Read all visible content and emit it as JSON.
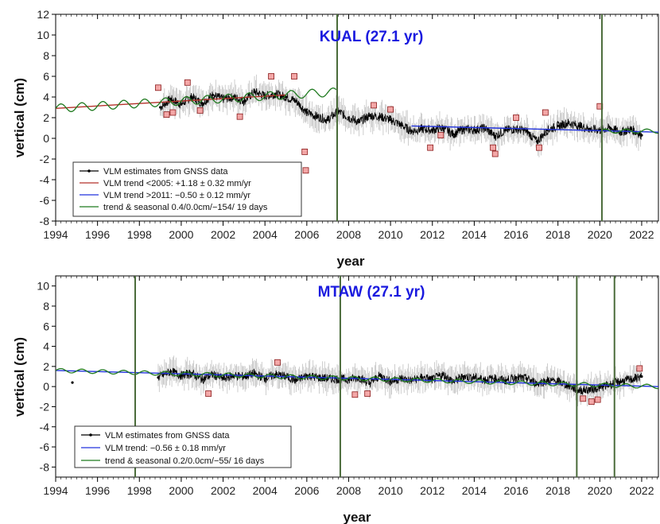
{
  "chart_data": [
    {
      "type": "line",
      "title": "KUAL (27.1 yr)",
      "xlabel": "year",
      "ylabel": "vertical (cm)",
      "xlim": [
        1994,
        2022.8
      ],
      "ylim": [
        -8,
        12
      ],
      "x_ticks": [
        "1994",
        "1996",
        "1998",
        "2000",
        "2002",
        "2004",
        "2006",
        "2008",
        "2010",
        "2012",
        "2014",
        "2016",
        "2018",
        "2020",
        "2022"
      ],
      "y_ticks": [
        "-8",
        "-6",
        "-4",
        "-2",
        "0",
        "2",
        "4",
        "6",
        "8",
        "10",
        "12"
      ],
      "legend": [
        {
          "label": "VLM estimates from GNSS data",
          "color": "#000000"
        },
        {
          "label": "VLM trend <2005: +1.18 ± 0.32 mm/yr",
          "color": "#b5322a"
        },
        {
          "label": "VLM trend >2011: −0.50 ± 0.12 mm/yr",
          "color": "#2233dd"
        },
        {
          "label": "trend & seasonal 0.4/0.0cm/−154/ 19 days",
          "color": "#1f7a1f"
        }
      ],
      "legend_position": "bottom-left",
      "breaks": [
        2007.45,
        2020.1
      ],
      "series": [
        {
          "name": "VLM estimates from GNSS data",
          "x": [
            1999.0,
            1999.5,
            2000.0,
            2000.5,
            2001.0,
            2001.5,
            2002.0,
            2002.5,
            2003.0,
            2003.5,
            2004.0,
            2004.5,
            2005.0,
            2005.5,
            2006.0,
            2006.5,
            2007.0,
            2007.5,
            2008.0,
            2008.5,
            2009.0,
            2009.5,
            2010.0,
            2010.5,
            2011.0,
            2011.5,
            2012.0,
            2012.5,
            2013.0,
            2013.5,
            2014.0,
            2014.5,
            2015.0,
            2015.5,
            2016.0,
            2016.5,
            2017.0,
            2017.5,
            2018.0,
            2018.5,
            2019.0,
            2019.5,
            2020.0,
            2020.5,
            2021.0,
            2021.5,
            2022.0
          ],
          "y": [
            3.0,
            3.8,
            3.3,
            4.0,
            3.4,
            4.2,
            3.8,
            4.0,
            3.6,
            4.5,
            4.1,
            4.3,
            4.0,
            3.6,
            2.5,
            2.1,
            1.8,
            2.6,
            2.0,
            1.6,
            2.2,
            2.1,
            1.8,
            1.3,
            0.7,
            0.9,
            0.8,
            1.0,
            0.4,
            0.9,
            0.8,
            1.0,
            0.2,
            0.8,
            0.9,
            0.7,
            -0.3,
            0.8,
            1.2,
            1.5,
            1.2,
            0.9,
            0.8,
            1.0,
            0.6,
            0.9,
            0.3
          ]
        },
        {
          "name": "VLM trend <2005: +1.18 ± 0.32 mm/yr",
          "x": [
            1994,
            2005
          ],
          "y": [
            2.9,
            4.2
          ]
        },
        {
          "name": "VLM trend >2011: −0.50 ± 0.12 mm/yr",
          "x": [
            2011,
            2022.8
          ],
          "y": [
            1.2,
            0.6
          ]
        }
      ],
      "outliers": {
        "x": [
          1998.9,
          1999.3,
          1999.6,
          2000.3,
          2000.9,
          2002.8,
          2004.3,
          2005.4,
          2005.9,
          2005.95,
          2009.2,
          2010.0,
          2011.9,
          2012.4,
          2014.9,
          2015.0,
          2016.0,
          2017.1,
          2017.4,
          2020.0
        ],
        "y": [
          4.9,
          2.3,
          2.5,
          5.4,
          2.7,
          2.1,
          6.0,
          6.0,
          -1.3,
          -3.1,
          3.2,
          2.8,
          -0.9,
          0.3,
          -0.9,
          -1.5,
          2.0,
          -0.9,
          2.5,
          3.1
        ]
      }
    },
    {
      "type": "line",
      "title": "MTAW (27.1 yr)",
      "xlabel": "year",
      "ylabel": "vertical (cm)",
      "xlim": [
        1994,
        2022.8
      ],
      "ylim": [
        -9,
        11
      ],
      "x_ticks": [
        "1994",
        "1996",
        "1998",
        "2000",
        "2002",
        "2004",
        "2006",
        "2008",
        "2010",
        "2012",
        "2014",
        "2016",
        "2018",
        "2020",
        "2022"
      ],
      "y_ticks": [
        "-8",
        "-6",
        "-4",
        "-2",
        "0",
        "2",
        "4",
        "6",
        "8",
        "10"
      ],
      "legend": [
        {
          "label": "VLM estimates from GNSS data",
          "color": "#000000"
        },
        {
          "label": "VLM trend: −0.56 ± 0.18 mm/yr",
          "color": "#2233dd"
        },
        {
          "label": "trend & seasonal 0.2/0.0cm/−55/ 16 days",
          "color": "#1f7a1f"
        }
      ],
      "legend_position": "bottom-left",
      "breaks": [
        1997.8,
        2007.6,
        2018.9,
        2020.7
      ],
      "series": [
        {
          "name": "VLM estimates from GNSS data",
          "x": [
            1994.8,
            1998.9,
            1999.5,
            2000.0,
            2000.5,
            2001.0,
            2001.5,
            2002.0,
            2002.5,
            2003.0,
            2003.5,
            2004.0,
            2004.5,
            2005.0,
            2005.5,
            2006.0,
            2006.5,
            2007.0,
            2008.0,
            2008.5,
            2009.0,
            2009.5,
            2010.0,
            2010.5,
            2011.0,
            2011.5,
            2012.0,
            2012.5,
            2013.0,
            2013.5,
            2014.0,
            2014.5,
            2015.0,
            2015.5,
            2016.0,
            2016.5,
            2017.0,
            2017.5,
            2018.0,
            2018.5,
            2019.0,
            2019.5,
            2020.0,
            2020.5,
            2021.0,
            2021.5,
            2022.0
          ],
          "y": [
            0.4,
            0.9,
            1.5,
            1.1,
            1.3,
            0.7,
            1.2,
            0.8,
            1.1,
            1.0,
            1.3,
            0.8,
            1.2,
            1.0,
            0.6,
            1.1,
            0.9,
            0.8,
            0.7,
            0.9,
            0.3,
            1.1,
            0.5,
            0.8,
            0.6,
            0.9,
            0.7,
            1.2,
            0.5,
            1.0,
            0.9,
            0.7,
            0.8,
            0.6,
            0.9,
            0.8,
            0.3,
            0.6,
            0.5,
            0.1,
            -0.4,
            -0.3,
            -0.1,
            0.2,
            0.5,
            0.7,
            1.0
          ]
        },
        {
          "name": "VLM trend: −0.56 ± 0.18 mm/yr",
          "x": [
            1994,
            2022.8
          ],
          "y": [
            1.6,
            0.0
          ]
        }
      ],
      "outliers": {
        "x": [
          2001.3,
          2004.6,
          2008.3,
          2008.9,
          2019.2,
          2019.6,
          2019.9,
          2021.9
        ],
        "y": [
          -0.7,
          2.4,
          -0.8,
          -0.7,
          -1.2,
          -1.5,
          -1.3,
          1.8
        ]
      }
    }
  ]
}
